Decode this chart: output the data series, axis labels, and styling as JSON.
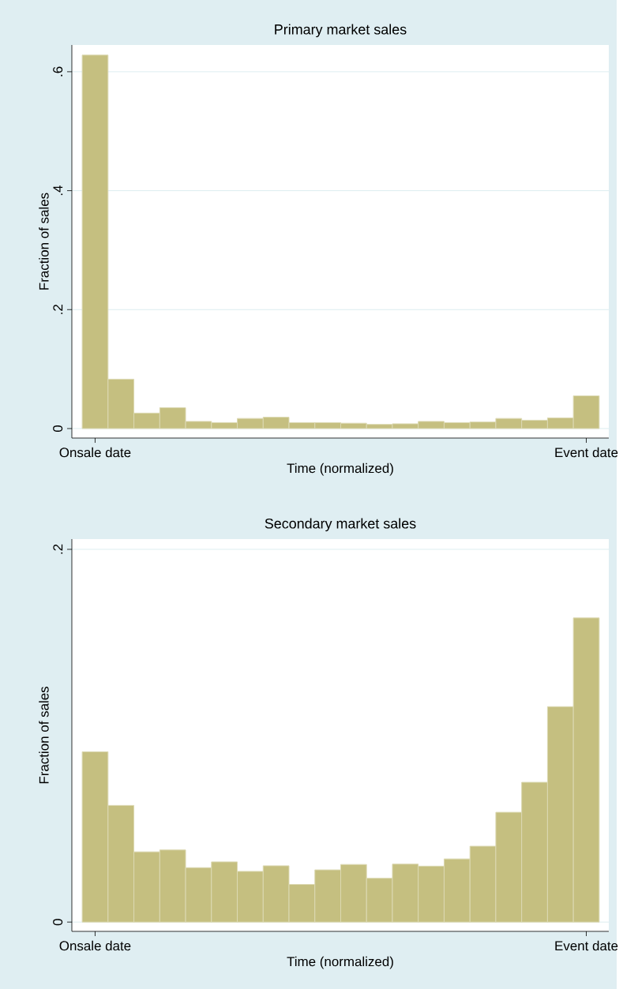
{
  "chart_data": [
    {
      "type": "bar",
      "title": "Primary market sales",
      "xlabel": "Time (normalized)",
      "ylabel": "Fraction of sales",
      "categories": [
        "Onsale date",
        null,
        null,
        null,
        null,
        null,
        null,
        null,
        null,
        null,
        null,
        null,
        null,
        null,
        null,
        null,
        null,
        null,
        null,
        "Event date"
      ],
      "values": [
        0.628,
        0.083,
        0.026,
        0.035,
        0.012,
        0.01,
        0.017,
        0.019,
        0.01,
        0.01,
        0.009,
        0.007,
        0.008,
        0.012,
        0.01,
        0.011,
        0.017,
        0.014,
        0.018,
        0.055
      ],
      "color": "#c5bf80",
      "ylim": [
        -0.016,
        0.645
      ],
      "yticks": [
        0,
        {
          "value": 0.2,
          "label": ".2"
        },
        {
          "value": 0.4,
          "label": ".4"
        },
        {
          "value": 0.6,
          "label": ".6"
        }
      ],
      "grid": "y"
    },
    {
      "type": "bar",
      "title": "Secondary market sales",
      "xlabel": "Time (normalized)",
      "ylabel": "Fraction of sales",
      "categories": [
        "Onsale date",
        null,
        null,
        null,
        null,
        null,
        null,
        null,
        null,
        null,
        null,
        null,
        null,
        null,
        null,
        null,
        null,
        null,
        null,
        "Event date"
      ],
      "values": [
        0.0914,
        0.0626,
        0.0377,
        0.0387,
        0.0292,
        0.0323,
        0.0272,
        0.0302,
        0.0202,
        0.028,
        0.0309,
        0.0235,
        0.0311,
        0.03,
        0.0339,
        0.0407,
        0.0589,
        0.075,
        0.1156,
        0.1632
      ],
      "color": "#c5bf80",
      "ylim": [
        -0.005,
        0.2055
      ],
      "yticks": [
        0,
        {
          "value": 0.2,
          "label": ".2"
        }
      ],
      "grid": "y"
    }
  ]
}
